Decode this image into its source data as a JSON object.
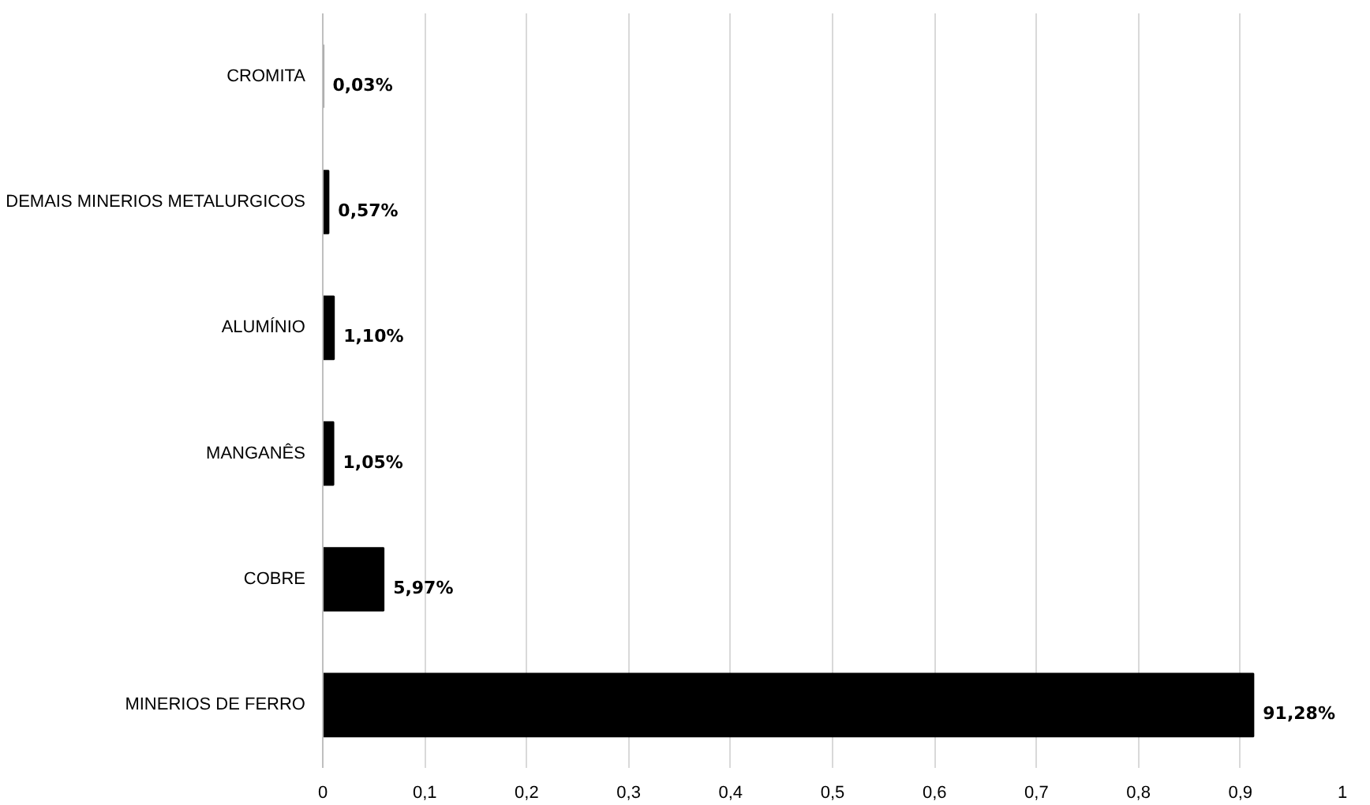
{
  "chart_data": {
    "type": "bar",
    "orientation": "horizontal",
    "categories": [
      "CROMITA",
      "DEMAIS MINERIOS METALURGICOS",
      "ALUMÍNIO",
      "MANGANÊS",
      "COBRE",
      "MINERIOS DE FERRO"
    ],
    "values": [
      0.0003,
      0.0057,
      0.011,
      0.0105,
      0.0597,
      0.9128
    ],
    "value_labels": [
      "0,03%",
      "0,57%",
      "1,10%",
      "1,05%",
      "5,97%",
      "91,28%"
    ],
    "color": "#000000",
    "xlim": [
      0,
      1
    ],
    "xticks": [
      0,
      {
        "value": 0.1,
        "label": "0,1"
      },
      {
        "value": 0.2,
        "label": "0,2"
      },
      {
        "value": 0.3,
        "label": "0,3"
      },
      {
        "value": 0.4,
        "label": "0,4"
      },
      {
        "value": 0.5,
        "label": "0,5"
      },
      {
        "value": 0.6,
        "label": "0,6"
      },
      {
        "value": 0.7,
        "label": "0,7"
      },
      {
        "value": 0.8,
        "label": "0,8"
      },
      {
        "value": 0.9,
        "label": "0,9"
      },
      1
    ],
    "grid": "x"
  }
}
